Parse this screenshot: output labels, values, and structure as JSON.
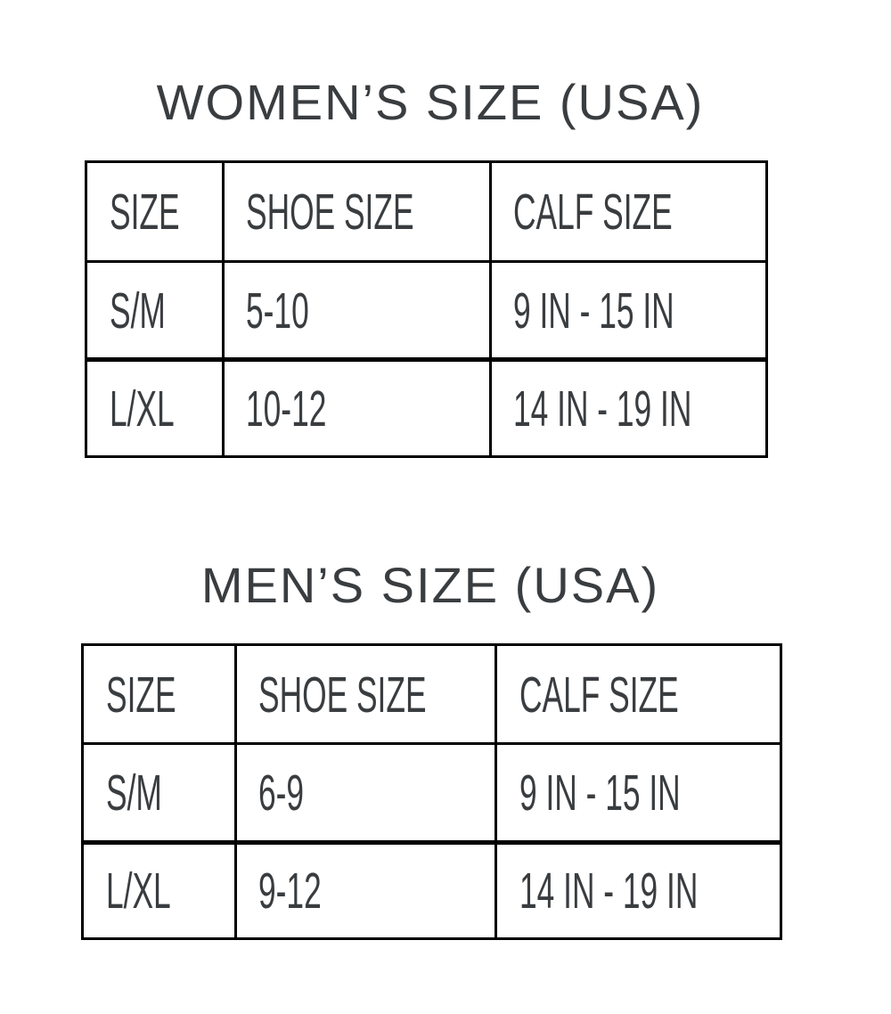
{
  "women": {
    "title": "WOMEN’S SIZE (USA)",
    "headers": [
      "SIZE",
      "SHOE SIZE",
      "CALF SIZE"
    ],
    "rows": [
      [
        "S/M",
        "5-10",
        "9 IN - 15 IN"
      ],
      [
        "L/XL",
        "10-12",
        "14 IN - 19 IN"
      ]
    ]
  },
  "men": {
    "title": "MEN’S SIZE (USA)",
    "headers": [
      "SIZE",
      "SHOE SIZE",
      "CALF SIZE"
    ],
    "rows": [
      [
        "S/M",
        "6-9",
        "9 IN - 15 IN"
      ],
      [
        "L/XL",
        "9-12",
        "14 IN - 19 IN"
      ]
    ]
  }
}
